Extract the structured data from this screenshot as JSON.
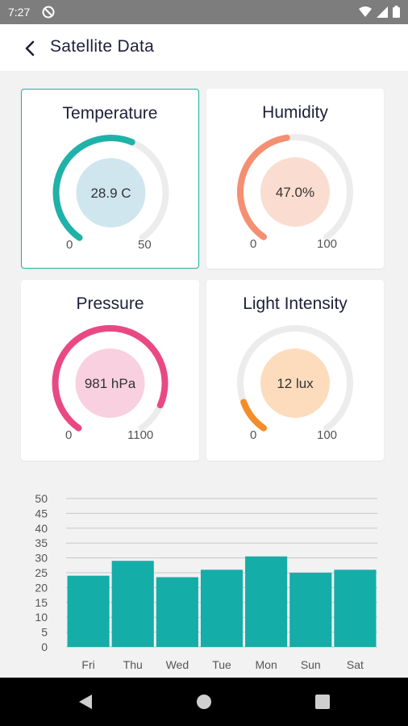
{
  "status_bar": {
    "time": "7:27"
  },
  "app_bar": {
    "title": "Satellite Data"
  },
  "gauges": [
    {
      "title": "Temperature",
      "value_text": "28.9 C",
      "value": 28.9,
      "min": "0",
      "max": "50",
      "min_value": 0,
      "max_value": 50,
      "arc_color": "#1fb2a8",
      "center_color": "#cfe6ef"
    },
    {
      "title": "Humidity",
      "value_text": "47.0%",
      "value": 47.0,
      "min": "0",
      "max": "100",
      "min_value": 0,
      "max_value": 100,
      "arc_color": "#f58f72",
      "center_color": "#fbdcd1"
    },
    {
      "title": "Pressure",
      "value_text": "981 hPa",
      "value": 981,
      "min": "0",
      "max": "1100",
      "min_value": 0,
      "max_value": 1100,
      "arc_color": "#e94983",
      "center_color": "#f9d0df"
    },
    {
      "title": "Light Intensity",
      "value_text": "12 lux",
      "value": 12,
      "min": "0",
      "max": "100",
      "min_value": 0,
      "max_value": 100,
      "arc_color": "#f38d2a",
      "center_color": "#fddcbe"
    }
  ],
  "chart_data": {
    "type": "bar",
    "categories": [
      "Fri",
      "Thu",
      "Wed",
      "Tue",
      "Mon",
      "Sun",
      "Sat"
    ],
    "values": [
      24,
      29,
      23.5,
      26,
      30.5,
      25,
      26
    ],
    "yticks": [
      "0",
      "5",
      "10",
      "15",
      "20",
      "25",
      "30",
      "35",
      "40",
      "45",
      "50"
    ],
    "ylim": [
      0,
      50
    ],
    "grid": true,
    "bar_color": "#14ada8"
  }
}
